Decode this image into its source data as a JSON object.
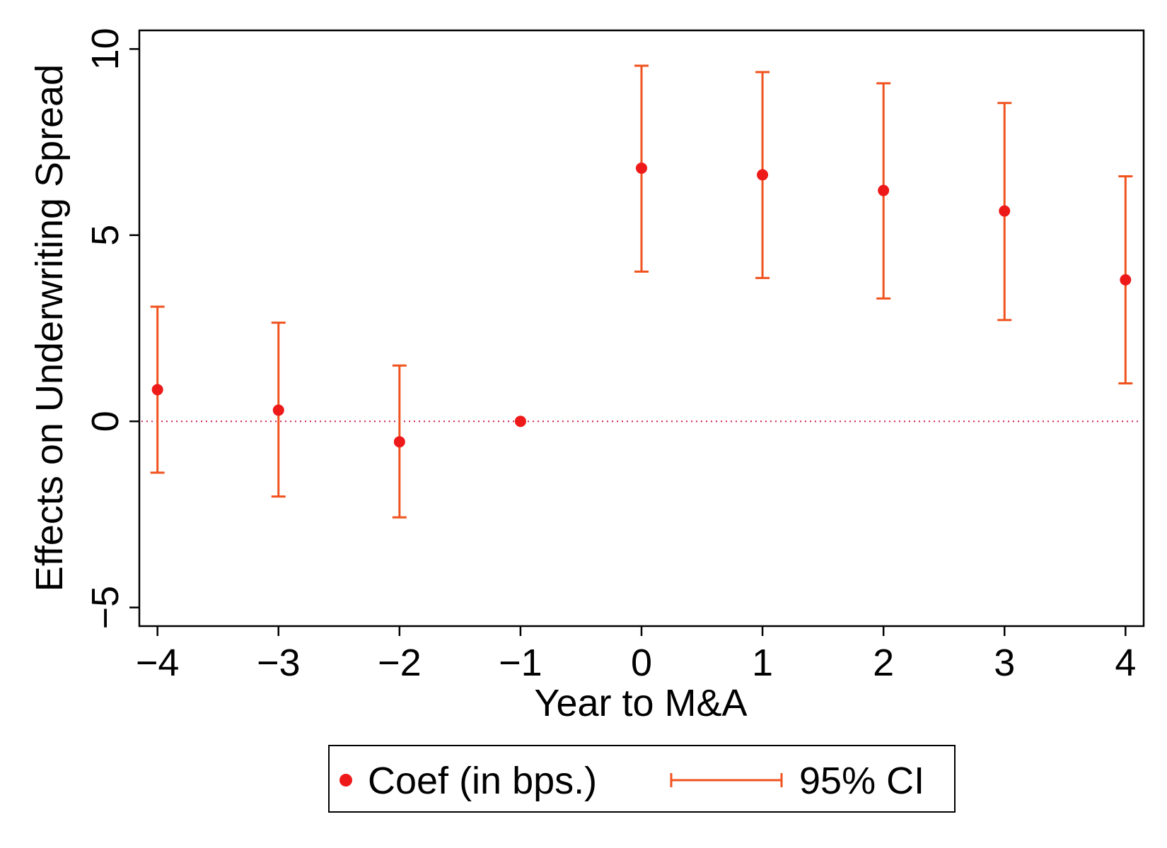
{
  "chart_data": {
    "type": "scatter",
    "xlabel": "Year to M&A",
    "ylabel": "Effects on Underwriting Spread",
    "xlim": [
      -4.15,
      4.15
    ],
    "ylim": [
      -5.5,
      10.5
    ],
    "x_ticks": [
      -4,
      -3,
      -2,
      -1,
      0,
      1,
      2,
      3,
      4
    ],
    "x_tick_labels": [
      "−4",
      "−3",
      "−2",
      "−1",
      "0",
      "1",
      "2",
      "3",
      "4"
    ],
    "y_ticks": [
      -5,
      0,
      5,
      10
    ],
    "y_tick_labels": [
      "−5",
      "0",
      "5",
      "10"
    ],
    "reference_line": {
      "y": 0,
      "style": "dotted"
    },
    "grid": false,
    "legend_position": "bottom",
    "series": [
      {
        "name": "Coef (in bps.)",
        "kind": "points",
        "x": [
          -4,
          -3,
          -2,
          -1,
          0,
          1,
          2,
          3,
          4
        ],
        "y": [
          0.85,
          0.3,
          -0.55,
          0.0,
          6.8,
          6.62,
          6.2,
          5.65,
          3.8
        ]
      },
      {
        "name": "95% CI",
        "kind": "error_bars",
        "x": [
          -4,
          -3,
          -2,
          0,
          1,
          2,
          3,
          4
        ],
        "lower": [
          -1.38,
          -2.02,
          -2.58,
          4.02,
          3.85,
          3.3,
          2.72,
          1.02
        ],
        "upper": [
          3.08,
          2.65,
          1.5,
          9.55,
          9.38,
          9.08,
          8.55,
          6.58
        ]
      }
    ]
  },
  "colors": {
    "point": "#ee1a1a",
    "ci": "#f0521e",
    "reference_line": "#cf1f4a",
    "axis": "#000000"
  },
  "legend": {
    "items": [
      {
        "label": "Coef (in bps.)",
        "symbol": "dot"
      },
      {
        "label": "95% CI",
        "symbol": "error-bar"
      }
    ]
  }
}
